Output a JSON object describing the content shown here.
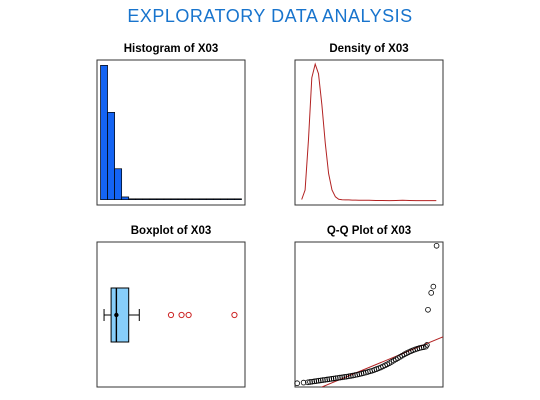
{
  "title": "EXPLORATORY  DATA  ANALYSIS",
  "colors": {
    "title": "#1874cd",
    "histogram_fill": "#1464f4",
    "density_line": "#b22222",
    "box_fill": "#87cefa",
    "outlier": "#cd2626",
    "qq_line": "#b22222"
  },
  "chart_data": [
    {
      "type": "bar",
      "title": "Histogram of X03",
      "bins": [
        {
          "x0": 0,
          "x1": 1,
          "count": 100
        },
        {
          "x0": 1,
          "x1": 2,
          "count": 65
        },
        {
          "x0": 2,
          "x1": 3,
          "count": 23
        },
        {
          "x0": 3,
          "x1": 4,
          "count": 2
        },
        {
          "x0": 4,
          "x1": 5,
          "count": 0.6
        },
        {
          "x0": 5,
          "x1": 6,
          "count": 0.6
        },
        {
          "x0": 6,
          "x1": 7,
          "count": 0.6
        },
        {
          "x0": 7,
          "x1": 8,
          "count": 0.6
        },
        {
          "x0": 8,
          "x1": 9,
          "count": 0.6
        },
        {
          "x0": 9,
          "x1": 10,
          "count": 0.6
        },
        {
          "x0": 10,
          "x1": 11,
          "count": 0.6
        },
        {
          "x0": 11,
          "x1": 12,
          "count": 0.6
        },
        {
          "x0": 12,
          "x1": 13,
          "count": 0.6
        },
        {
          "x0": 13,
          "x1": 14,
          "count": 0.6
        },
        {
          "x0": 14,
          "x1": 15,
          "count": 0.6
        },
        {
          "x0": 15,
          "x1": 16,
          "count": 0.6
        },
        {
          "x0": 16,
          "x1": 17,
          "count": 0.6
        },
        {
          "x0": 17,
          "x1": 18,
          "count": 0.6
        },
        {
          "x0": 18,
          "x1": 19,
          "count": 0.6
        },
        {
          "x0": 19,
          "x1": 20,
          "count": 0.6
        }
      ],
      "xlim": [
        -0.5,
        20.5
      ],
      "ylim": [
        -4,
        104
      ]
    },
    {
      "type": "line",
      "title": "Density of X03",
      "x": [
        0,
        0.5,
        1,
        1.5,
        2,
        2.5,
        3,
        3.5,
        4,
        4.5,
        5,
        5.5,
        6,
        6.5,
        7,
        7.5,
        8,
        8.5,
        9,
        9.5,
        10,
        11,
        12,
        13,
        14,
        15,
        16,
        17,
        18,
        19,
        20
      ],
      "y": [
        0.01,
        0.08,
        0.45,
        0.9,
        1.0,
        0.93,
        0.7,
        0.42,
        0.2,
        0.08,
        0.03,
        0.012,
        0.008,
        0.007,
        0.007,
        0.006,
        0.006,
        0.005,
        0.005,
        0.004,
        0.004,
        0.003,
        0.003,
        0.002,
        0.003,
        0.004,
        0.003,
        0.002,
        0.002,
        0.002,
        0.002
      ],
      "xlim": [
        -1,
        21
      ],
      "ylim": [
        -0.03,
        1.03
      ]
    },
    {
      "type": "box",
      "title": "Boxplot of X03",
      "whisker_low": 0,
      "q1": 1,
      "median": 1.75,
      "q3": 3.5,
      "whisker_high": 5,
      "mean": 1.75,
      "outliers": [
        9.5,
        11,
        12,
        18.5
      ],
      "xlim": [
        -1,
        20
      ]
    },
    {
      "type": "scatter",
      "title": "Q-Q Plot of X03",
      "points": [
        [
          -3.2,
          0.1
        ],
        [
          -2.9,
          0.2
        ],
        [
          -2.7,
          0.25
        ],
        [
          -2.6,
          0.3
        ],
        [
          -2.5,
          0.35
        ],
        [
          -2.4,
          0.4
        ],
        [
          -2.3,
          0.45
        ],
        [
          -2.2,
          0.5
        ],
        [
          -2.1,
          0.55
        ],
        [
          -2.0,
          0.6
        ],
        [
          -1.9,
          0.65
        ],
        [
          -1.8,
          0.7
        ],
        [
          -1.7,
          0.75
        ],
        [
          -1.6,
          0.8
        ],
        [
          -1.5,
          0.85
        ],
        [
          -1.4,
          0.9
        ],
        [
          -1.3,
          0.95
        ],
        [
          -1.2,
          1.0
        ],
        [
          -1.1,
          1.05
        ],
        [
          -1.0,
          1.1
        ],
        [
          -0.9,
          1.15
        ],
        [
          -0.8,
          1.2
        ],
        [
          -0.7,
          1.27
        ],
        [
          -0.6,
          1.33
        ],
        [
          -0.5,
          1.4
        ],
        [
          -0.4,
          1.47
        ],
        [
          -0.3,
          1.55
        ],
        [
          -0.2,
          1.63
        ],
        [
          -0.1,
          1.72
        ],
        [
          0.0,
          1.8
        ],
        [
          0.1,
          1.9
        ],
        [
          0.2,
          2.0
        ],
        [
          0.3,
          2.1
        ],
        [
          0.4,
          2.22
        ],
        [
          0.5,
          2.35
        ],
        [
          0.6,
          2.48
        ],
        [
          0.7,
          2.62
        ],
        [
          0.8,
          2.78
        ],
        [
          0.9,
          2.95
        ],
        [
          1.0,
          3.12
        ],
        [
          1.1,
          3.3
        ],
        [
          1.2,
          3.5
        ],
        [
          1.3,
          3.7
        ],
        [
          1.4,
          3.9
        ],
        [
          1.5,
          4.1
        ],
        [
          1.6,
          4.3
        ],
        [
          1.7,
          4.5
        ],
        [
          1.8,
          4.7
        ],
        [
          1.9,
          4.88
        ],
        [
          2.0,
          5.05
        ],
        [
          2.1,
          5.2
        ],
        [
          2.2,
          5.35
        ],
        [
          2.3,
          5.48
        ],
        [
          2.4,
          5.6
        ],
        [
          2.5,
          5.7
        ],
        [
          2.6,
          5.78
        ],
        [
          2.7,
          5.85
        ],
        [
          2.8,
          5.92
        ],
        [
          2.85,
          6.2
        ],
        [
          2.9,
          11.8
        ],
        [
          3.05,
          14.5
        ],
        [
          3.15,
          15.5
        ],
        [
          3.3,
          22.0
        ]
      ],
      "reference_line": {
        "x": [
          -2.4,
          3.6
        ],
        "y": [
          -1.0,
          7.5
        ]
      },
      "xlim": [
        -3.3,
        3.6
      ],
      "ylim": [
        -0.5,
        22.6
      ]
    }
  ]
}
